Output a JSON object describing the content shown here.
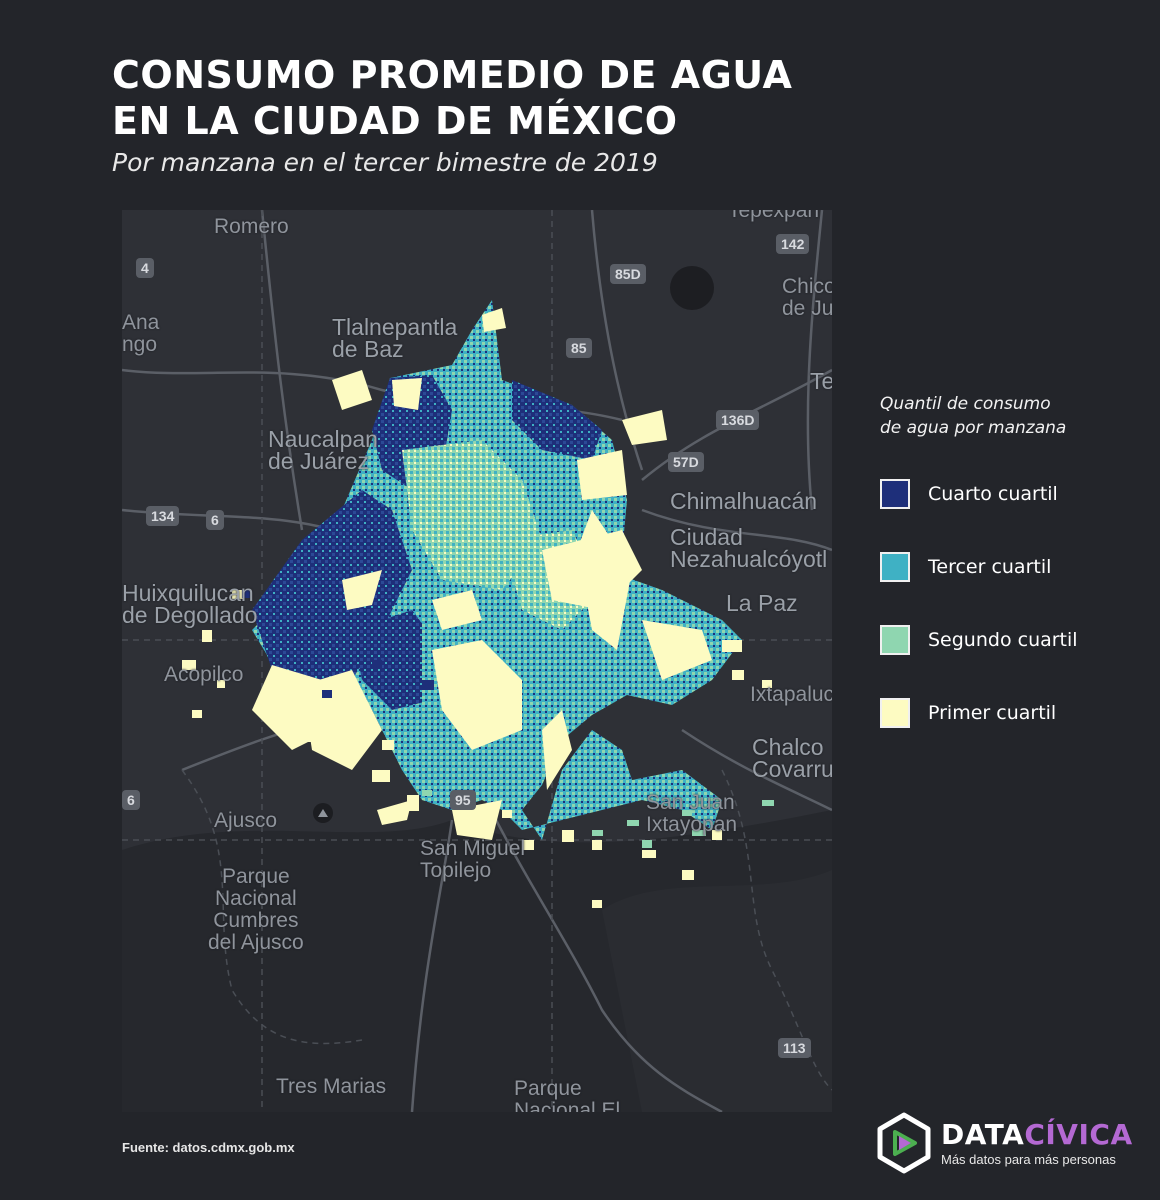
{
  "title_line1": "CONSUMO PROMEDIO DE AGUA",
  "title_line2": "EN LA CIUDAD DE MÉXICO",
  "subtitle": "Por manzana en el tercer bimestre de 2019",
  "legend": {
    "title_line1": "Quantil de consumo",
    "title_line2": "de agua por manzana",
    "items": [
      {
        "label": "Cuarto cuartil",
        "color": "#1e2f7a"
      },
      {
        "label": "Tercer cuartil",
        "color": "#3fb1c4"
      },
      {
        "label": "Segundo cuartil",
        "color": "#8fd6b0"
      },
      {
        "label": "Primer cuartil",
        "color": "#fdfbc2"
      }
    ]
  },
  "map": {
    "places": [
      "Romero",
      "Tlalnepantla\nde Baz",
      "Naucalpan\nde Juárez",
      "Chimalhuacán",
      "Ciudad\nNezahualcóyotl",
      "La Paz",
      "Huixquilucan\nde Degollado",
      "Acopilco",
      "Ixtapaluca",
      "Chalco\nCovarrubias",
      "Ajusco",
      "San Miguel\nTopilejo",
      "San Juan\nIxtayopan",
      "Parque\nNacional\nCumbres\ndel Ajusco",
      "Tres Marias",
      "Parque\nNacional El",
      "Tepexpan",
      "Chicoloapan\nde Juárez",
      "Texcoco",
      "Ana\nngo"
    ],
    "road_shields": [
      "4",
      "85D",
      "142",
      "85",
      "136D",
      "57D",
      "134",
      "6",
      "6",
      "95",
      "113"
    ]
  },
  "source": "Fuente: datos.cdmx.gob.mx",
  "logo": {
    "name_part1": "DATA",
    "name_part2": "CÍVICA",
    "tagline": "Más datos para más personas"
  }
}
